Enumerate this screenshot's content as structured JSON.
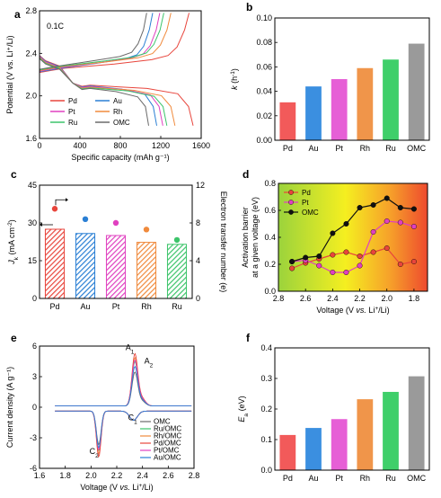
{
  "figure": {
    "panels": [
      "a",
      "b",
      "c",
      "d",
      "e",
      "f"
    ]
  },
  "chart_data": [
    {
      "panel": "a",
      "type": "line",
      "title": "",
      "annotation": "0.1C",
      "xlabel": "Specific capacity (mAh g⁻¹)",
      "ylabel": "Potential (V vs. Li⁺/Li)",
      "xlim": [
        0,
        1600
      ],
      "ylim": [
        1.6,
        2.8
      ],
      "xticks": [
        "0",
        "400",
        "800",
        "1200",
        "1600"
      ],
      "yticks": [
        "1.6",
        "2.0",
        "2.4",
        "2.8"
      ],
      "legend": "bottom-left",
      "series": [
        {
          "name": "Pd",
          "color": "#e8453c",
          "discharge_capacity": 1520,
          "charge_capacity": 1480
        },
        {
          "name": "Au",
          "color": "#2a7fd4",
          "discharge_capacity": 1160,
          "charge_capacity": 1120
        },
        {
          "name": "Pt",
          "color": "#e040c0",
          "discharge_capacity": 1220,
          "charge_capacity": 1190
        },
        {
          "name": "Rh",
          "color": "#f08a3c",
          "discharge_capacity": 1340,
          "charge_capacity": 1300
        },
        {
          "name": "Ru",
          "color": "#3cc46a",
          "discharge_capacity": 1260,
          "charge_capacity": 1230
        },
        {
          "name": "OMC",
          "color": "#6a6a6a",
          "discharge_capacity": 1080,
          "charge_capacity": 1060
        }
      ]
    },
    {
      "panel": "b",
      "type": "bar",
      "title": "",
      "xlabel": "",
      "ylabel": "k (h⁻¹)",
      "ylim": [
        0.0,
        0.1
      ],
      "yticks": [
        "0.00",
        "0.02",
        "0.04",
        "0.06",
        "0.08",
        "0.10"
      ],
      "categories": [
        "Pd",
        "Au",
        "Pt",
        "Rh",
        "Ru",
        "OMC"
      ],
      "values": [
        0.031,
        0.044,
        0.05,
        0.059,
        0.066,
        0.079
      ],
      "colors": [
        "#f25a5a",
        "#3b8fe0",
        "#e65fd6",
        "#f0954a",
        "#3fcf6a",
        "#9a9a9a"
      ]
    },
    {
      "panel": "c",
      "type": "bar",
      "title": "",
      "xlabel": "",
      "ylabel": "Jk (mA cm⁻²)",
      "ylabel_right": "Electron transfer number (e)",
      "ylim": [
        0,
        45
      ],
      "ylim_right": [
        0,
        12
      ],
      "yticks": [
        "0",
        "15",
        "30",
        "45"
      ],
      "yticks_right": [
        "0",
        "4",
        "8",
        "12"
      ],
      "categories": [
        "Pd",
        "Au",
        "Pt",
        "Rh",
        "Ru"
      ],
      "values": [
        27.5,
        25.8,
        25.0,
        22.3,
        21.5
      ],
      "electron_transfer": [
        9.5,
        8.4,
        8.0,
        7.3,
        6.2
      ],
      "colors": [
        "#e8453c",
        "#2a7fd4",
        "#e040c0",
        "#f08a3c",
        "#3cc46a"
      ]
    },
    {
      "panel": "d",
      "type": "line",
      "title": "",
      "xlabel": "Voltage (V vs. Li⁺/Li)",
      "ylabel": "Activation barrier at a given voltage (eV)",
      "xlim": [
        2.8,
        1.7
      ],
      "ylim": [
        0.0,
        0.8
      ],
      "xticks": [
        "2.8",
        "2.6",
        "2.4",
        "2.2",
        "2.0",
        "1.8"
      ],
      "yticks": [
        "0.0",
        "0.2",
        "0.4",
        "0.6",
        "0.8"
      ],
      "legend": "top-left",
      "x": [
        2.7,
        2.6,
        2.5,
        2.4,
        2.3,
        2.2,
        2.1,
        2.0,
        1.9,
        1.8
      ],
      "series": [
        {
          "name": "Pd",
          "color": "#e8453c",
          "values": [
            0.17,
            0.21,
            0.24,
            0.27,
            0.29,
            0.26,
            0.29,
            0.32,
            0.2,
            0.22
          ]
        },
        {
          "name": "Pt",
          "color": "#e040c0",
          "values": [
            0.22,
            0.23,
            0.19,
            0.14,
            0.14,
            0.19,
            0.44,
            0.52,
            0.51,
            0.48
          ]
        },
        {
          "name": "OMC",
          "color": "#111111",
          "values": [
            0.22,
            0.25,
            0.26,
            0.43,
            0.5,
            0.62,
            0.64,
            0.69,
            0.62,
            0.61
          ]
        }
      ]
    },
    {
      "panel": "e",
      "type": "line",
      "title": "",
      "xlabel": "Voltage (V vs. Li⁺/Li)",
      "ylabel": "Current density (A g⁻¹)",
      "xlim": [
        1.6,
        2.8
      ],
      "ylim": [
        -6,
        6
      ],
      "xticks": [
        "1.6",
        "1.8",
        "2.0",
        "2.2",
        "2.4",
        "2.6",
        "2.8"
      ],
      "yticks": [
        "-6",
        "-3",
        "0",
        "3",
        "6"
      ],
      "legend": "bottom-right",
      "annotations": [
        "A1",
        "A2",
        "C1",
        "C2"
      ],
      "series": [
        {
          "name": "OMC",
          "color": "#6a6a6a",
          "anodic_peak": 3.2,
          "cathodic_peak": -3.3
        },
        {
          "name": "Ru/OMC",
          "color": "#3cc46a",
          "anodic_peak": 4.2,
          "cathodic_peak": -3.9
        },
        {
          "name": "Rh/OMC",
          "color": "#f08a3c",
          "anodic_peak": 4.6,
          "cathodic_peak": -4.2
        },
        {
          "name": "Pd/OMC",
          "color": "#e8453c",
          "anodic_peak": 5.0,
          "cathodic_peak": -4.5
        },
        {
          "name": "Pt/OMC",
          "color": "#e040c0",
          "anodic_peak": 4.4,
          "cathodic_peak": -3.8
        },
        {
          "name": "Au/OMC",
          "color": "#2a7fd4",
          "anodic_peak": 3.8,
          "cathodic_peak": -3.6
        }
      ]
    },
    {
      "panel": "f",
      "type": "bar",
      "title": "",
      "xlabel": "",
      "ylabel": "Ea (eV)",
      "ylim": [
        0.0,
        0.4
      ],
      "yticks": [
        "0.0",
        "0.1",
        "0.2",
        "0.3",
        "0.4"
      ],
      "categories": [
        "Pd",
        "Au",
        "Pt",
        "Rh",
        "Ru",
        "OMC"
      ],
      "values": [
        0.115,
        0.138,
        0.167,
        0.232,
        0.256,
        0.307
      ],
      "colors": [
        "#f25a5a",
        "#3b8fe0",
        "#e65fd6",
        "#f0954a",
        "#3fcf6a",
        "#9a9a9a"
      ]
    }
  ]
}
